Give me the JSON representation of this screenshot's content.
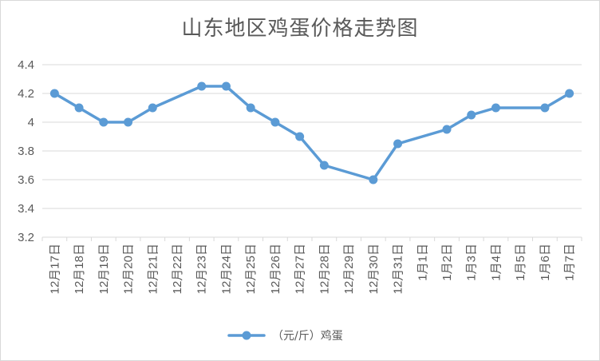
{
  "chart_data": {
    "type": "line",
    "title": "山东地区鸡蛋价格走势图",
    "categories": [
      "12月17日",
      "12月18日",
      "12月19日",
      "12月20日",
      "12月21日",
      "12月22日",
      "12月23日",
      "12月24日",
      "12月25日",
      "12月26日",
      "12月27日",
      "12月28日",
      "12月29日",
      "12月30日",
      "12月31日",
      "1月1日",
      "1月2日",
      "1月3日",
      "1月4日",
      "1月5日",
      "1月6日",
      "1月7日"
    ],
    "series": [
      {
        "name": "（元/斤）鸡蛋",
        "values": [
          4.2,
          4.1,
          4.0,
          4.0,
          4.1,
          null,
          4.25,
          4.25,
          4.1,
          4.0,
          3.9,
          3.7,
          null,
          3.6,
          3.85,
          null,
          3.95,
          4.05,
          4.1,
          null,
          4.1,
          4.2
        ],
        "color": "#5b9bd5"
      }
    ],
    "yticks": [
      "3.2",
      "3.4",
      "3.6",
      "3.8",
      "4",
      "4.2",
      "4.4"
    ],
    "ylim": [
      3.2,
      4.4
    ],
    "grid": true,
    "legend_position": "bottom",
    "xlabel": "",
    "ylabel": ""
  }
}
